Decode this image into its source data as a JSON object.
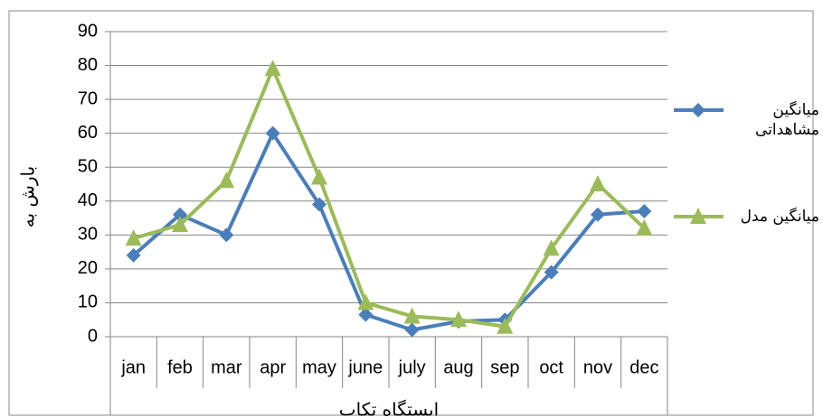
{
  "chart_data": {
    "type": "line",
    "x_label": "ایستگاه تکاب",
    "y_label": "بارش به",
    "categories": [
      "jan",
      "feb",
      "mar",
      "apr",
      "may",
      "june",
      "july",
      "aug",
      "sep",
      "oct",
      "nov",
      "dec"
    ],
    "series": [
      {
        "name": "میانگین مشاهداتی",
        "color": "#4a7ebb",
        "marker": "diamond",
        "values": [
          24,
          36,
          30,
          60,
          39,
          6.5,
          2,
          4.5,
          5,
          19,
          36,
          37
        ]
      },
      {
        "name": "میانگین مدل",
        "color": "#9bbb59",
        "marker": "triangle",
        "values": [
          29,
          33,
          46,
          79,
          47,
          10,
          6,
          5,
          3,
          26,
          45,
          32
        ]
      }
    ],
    "ylim": [
      0,
      90
    ],
    "yticks": [
      0,
      10,
      20,
      30,
      40,
      50,
      60,
      70,
      80,
      90
    ],
    "grid": true,
    "legend": "right"
  }
}
